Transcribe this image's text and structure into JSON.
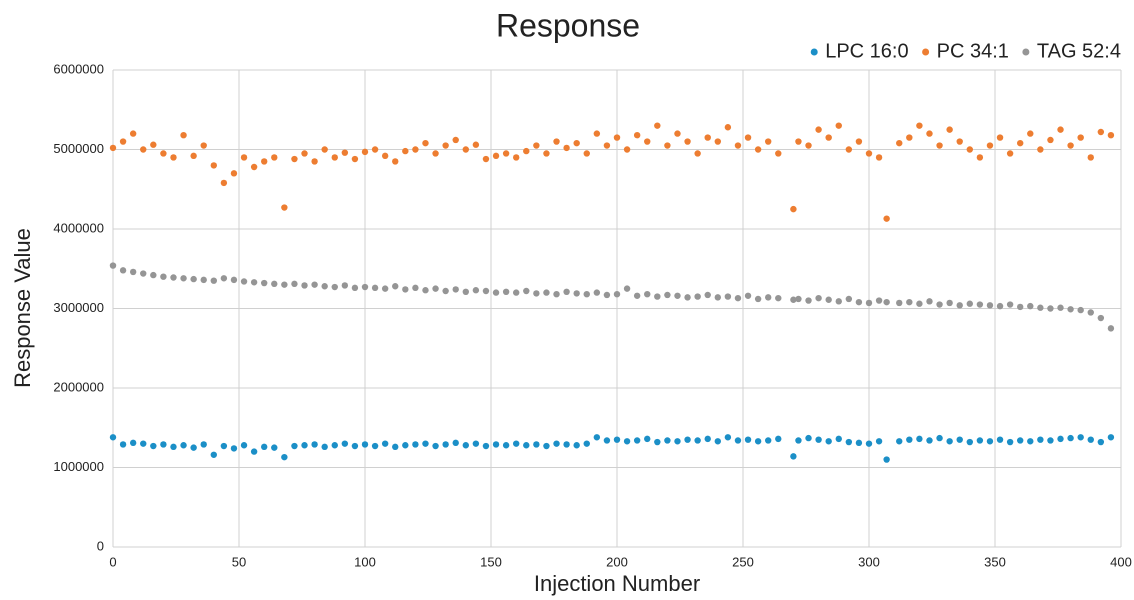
{
  "chart_data": {
    "type": "scatter",
    "title": "Response",
    "x_label": "Injection Number",
    "y_label": "Response Value",
    "xlim": [
      0,
      400
    ],
    "xticks": [
      0,
      50,
      100,
      150,
      200,
      250,
      300,
      350,
      400
    ],
    "ylim": [
      0,
      6000000
    ],
    "yticks": [
      0,
      1000000,
      2000000,
      3000000,
      4000000,
      5000000,
      6000000
    ],
    "grid": true,
    "legend": "top-right",
    "x": [
      0,
      4,
      8,
      12,
      16,
      20,
      24,
      28,
      32,
      36,
      40,
      44,
      48,
      52,
      56,
      60,
      64,
      68,
      72,
      76,
      80,
      84,
      88,
      92,
      96,
      100,
      104,
      108,
      112,
      116,
      120,
      124,
      128,
      132,
      136,
      140,
      144,
      148,
      152,
      156,
      160,
      164,
      168,
      172,
      176,
      180,
      184,
      188,
      192,
      196,
      200,
      204,
      208,
      212,
      216,
      220,
      224,
      228,
      232,
      236,
      240,
      244,
      248,
      252,
      256,
      260,
      264,
      270,
      272,
      276,
      280,
      284,
      288,
      292,
      296,
      300,
      304,
      307,
      312,
      316,
      320,
      324,
      328,
      332,
      336,
      340,
      344,
      348,
      352,
      356,
      360,
      364,
      368,
      372,
      376,
      380,
      384,
      388,
      392,
      396
    ],
    "series": [
      {
        "name": "LPC 16:0",
        "color": "#1b8fc7",
        "values": [
          1380000,
          1290000,
          1310000,
          1300000,
          1270000,
          1290000,
          1260000,
          1280000,
          1250000,
          1290000,
          1160000,
          1270000,
          1240000,
          1280000,
          1200000,
          1260000,
          1250000,
          1130000,
          1270000,
          1280000,
          1290000,
          1260000,
          1280000,
          1300000,
          1270000,
          1290000,
          1270000,
          1300000,
          1260000,
          1280000,
          1290000,
          1300000,
          1270000,
          1290000,
          1310000,
          1280000,
          1300000,
          1270000,
          1290000,
          1280000,
          1300000,
          1280000,
          1290000,
          1270000,
          1300000,
          1290000,
          1280000,
          1300000,
          1380000,
          1340000,
          1350000,
          1330000,
          1340000,
          1360000,
          1320000,
          1340000,
          1330000,
          1350000,
          1340000,
          1360000,
          1330000,
          1380000,
          1340000,
          1350000,
          1330000,
          1340000,
          1360000,
          1140000,
          1340000,
          1370000,
          1350000,
          1330000,
          1360000,
          1320000,
          1310000,
          1300000,
          1330000,
          1100000,
          1330000,
          1350000,
          1360000,
          1340000,
          1370000,
          1330000,
          1350000,
          1320000,
          1340000,
          1330000,
          1350000,
          1320000,
          1340000,
          1330000,
          1350000,
          1340000,
          1360000,
          1370000,
          1380000,
          1350000,
          1320000,
          1380000
        ]
      },
      {
        "name": "PC 34:1",
        "color": "#ed7d31",
        "values": [
          5020000,
          5100000,
          5200000,
          5000000,
          5060000,
          4950000,
          4900000,
          5180000,
          4920000,
          5050000,
          4800000,
          4580000,
          4700000,
          4900000,
          4780000,
          4850000,
          4900000,
          4270000,
          4880000,
          4950000,
          4850000,
          5000000,
          4900000,
          4960000,
          4880000,
          4970000,
          5000000,
          4920000,
          4850000,
          4980000,
          5000000,
          5080000,
          4950000,
          5050000,
          5120000,
          5000000,
          5060000,
          4880000,
          4920000,
          4950000,
          4900000,
          4980000,
          5050000,
          4950000,
          5100000,
          5020000,
          5080000,
          4950000,
          5200000,
          5050000,
          5150000,
          5000000,
          5180000,
          5100000,
          5300000,
          5050000,
          5200000,
          5100000,
          4950000,
          5150000,
          5100000,
          5280000,
          5050000,
          5150000,
          5000000,
          5100000,
          4950000,
          4250000,
          5100000,
          5050000,
          5250000,
          5150000,
          5300000,
          5000000,
          5100000,
          4950000,
          4900000,
          4130000,
          5080000,
          5150000,
          5300000,
          5200000,
          5050000,
          5250000,
          5100000,
          5000000,
          4900000,
          5050000,
          5150000,
          4950000,
          5080000,
          5200000,
          5000000,
          5120000,
          5250000,
          5050000,
          5150000,
          4900000,
          5220000,
          5180000
        ]
      },
      {
        "name": "TAG 52:4",
        "color": "#959595",
        "values": [
          3540000,
          3480000,
          3460000,
          3440000,
          3420000,
          3400000,
          3390000,
          3380000,
          3370000,
          3360000,
          3350000,
          3380000,
          3360000,
          3340000,
          3330000,
          3320000,
          3310000,
          3300000,
          3310000,
          3290000,
          3300000,
          3280000,
          3270000,
          3290000,
          3260000,
          3270000,
          3260000,
          3250000,
          3280000,
          3240000,
          3260000,
          3230000,
          3250000,
          3220000,
          3240000,
          3210000,
          3230000,
          3220000,
          3200000,
          3210000,
          3200000,
          3220000,
          3190000,
          3200000,
          3180000,
          3210000,
          3190000,
          3180000,
          3200000,
          3170000,
          3180000,
          3250000,
          3160000,
          3180000,
          3150000,
          3170000,
          3160000,
          3140000,
          3150000,
          3170000,
          3140000,
          3150000,
          3130000,
          3160000,
          3120000,
          3140000,
          3130000,
          3110000,
          3120000,
          3100000,
          3130000,
          3110000,
          3090000,
          3120000,
          3080000,
          3070000,
          3100000,
          3080000,
          3070000,
          3080000,
          3060000,
          3090000,
          3050000,
          3070000,
          3040000,
          3060000,
          3050000,
          3040000,
          3030000,
          3050000,
          3020000,
          3030000,
          3010000,
          3000000,
          3010000,
          2990000,
          2980000,
          2950000,
          2880000,
          2750000
        ]
      }
    ]
  }
}
